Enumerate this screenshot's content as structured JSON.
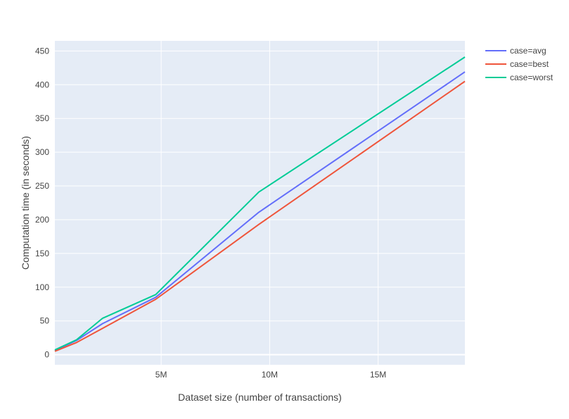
{
  "chart_data": {
    "type": "line",
    "xlabel": "Dataset size (number of transactions)",
    "ylabel": "Computation time (in seconds)",
    "xlim": [
      100000,
      19000000
    ],
    "ylim": [
      -15,
      465
    ],
    "x_ticks": [
      {
        "value": 5000000,
        "label": "5M"
      },
      {
        "value": 10000000,
        "label": "10M"
      },
      {
        "value": 15000000,
        "label": "15M"
      }
    ],
    "y_ticks": [
      {
        "value": 0,
        "label": "0"
      },
      {
        "value": 50,
        "label": "50"
      },
      {
        "value": 100,
        "label": "100"
      },
      {
        "value": 150,
        "label": "150"
      },
      {
        "value": 200,
        "label": "200"
      },
      {
        "value": 250,
        "label": "250"
      },
      {
        "value": 300,
        "label": "300"
      },
      {
        "value": 350,
        "label": "350"
      },
      {
        "value": 400,
        "label": "400"
      },
      {
        "value": 450,
        "label": "450"
      }
    ],
    "grid": true,
    "legend_position": "top-right",
    "background_color": "#e5ecf6",
    "grid_color": "#ffffff",
    "series": [
      {
        "name": "case=avg",
        "color": "#636efa",
        "x": [
          100000,
          1100000,
          2300000,
          4750000,
          9500000,
          19000000
        ],
        "y": [
          6,
          21,
          46,
          85,
          211,
          419
        ]
      },
      {
        "name": "case=best",
        "color": "#ef553b",
        "x": [
          100000,
          1100000,
          2300000,
          4750000,
          9500000,
          19000000
        ],
        "y": [
          5,
          18,
          39,
          82,
          193,
          405
        ]
      },
      {
        "name": "case=worst",
        "color": "#00cc96",
        "x": [
          100000,
          1100000,
          2300000,
          4750000,
          9500000,
          19000000
        ],
        "y": [
          7,
          22,
          54,
          89,
          241,
          441
        ]
      }
    ]
  }
}
